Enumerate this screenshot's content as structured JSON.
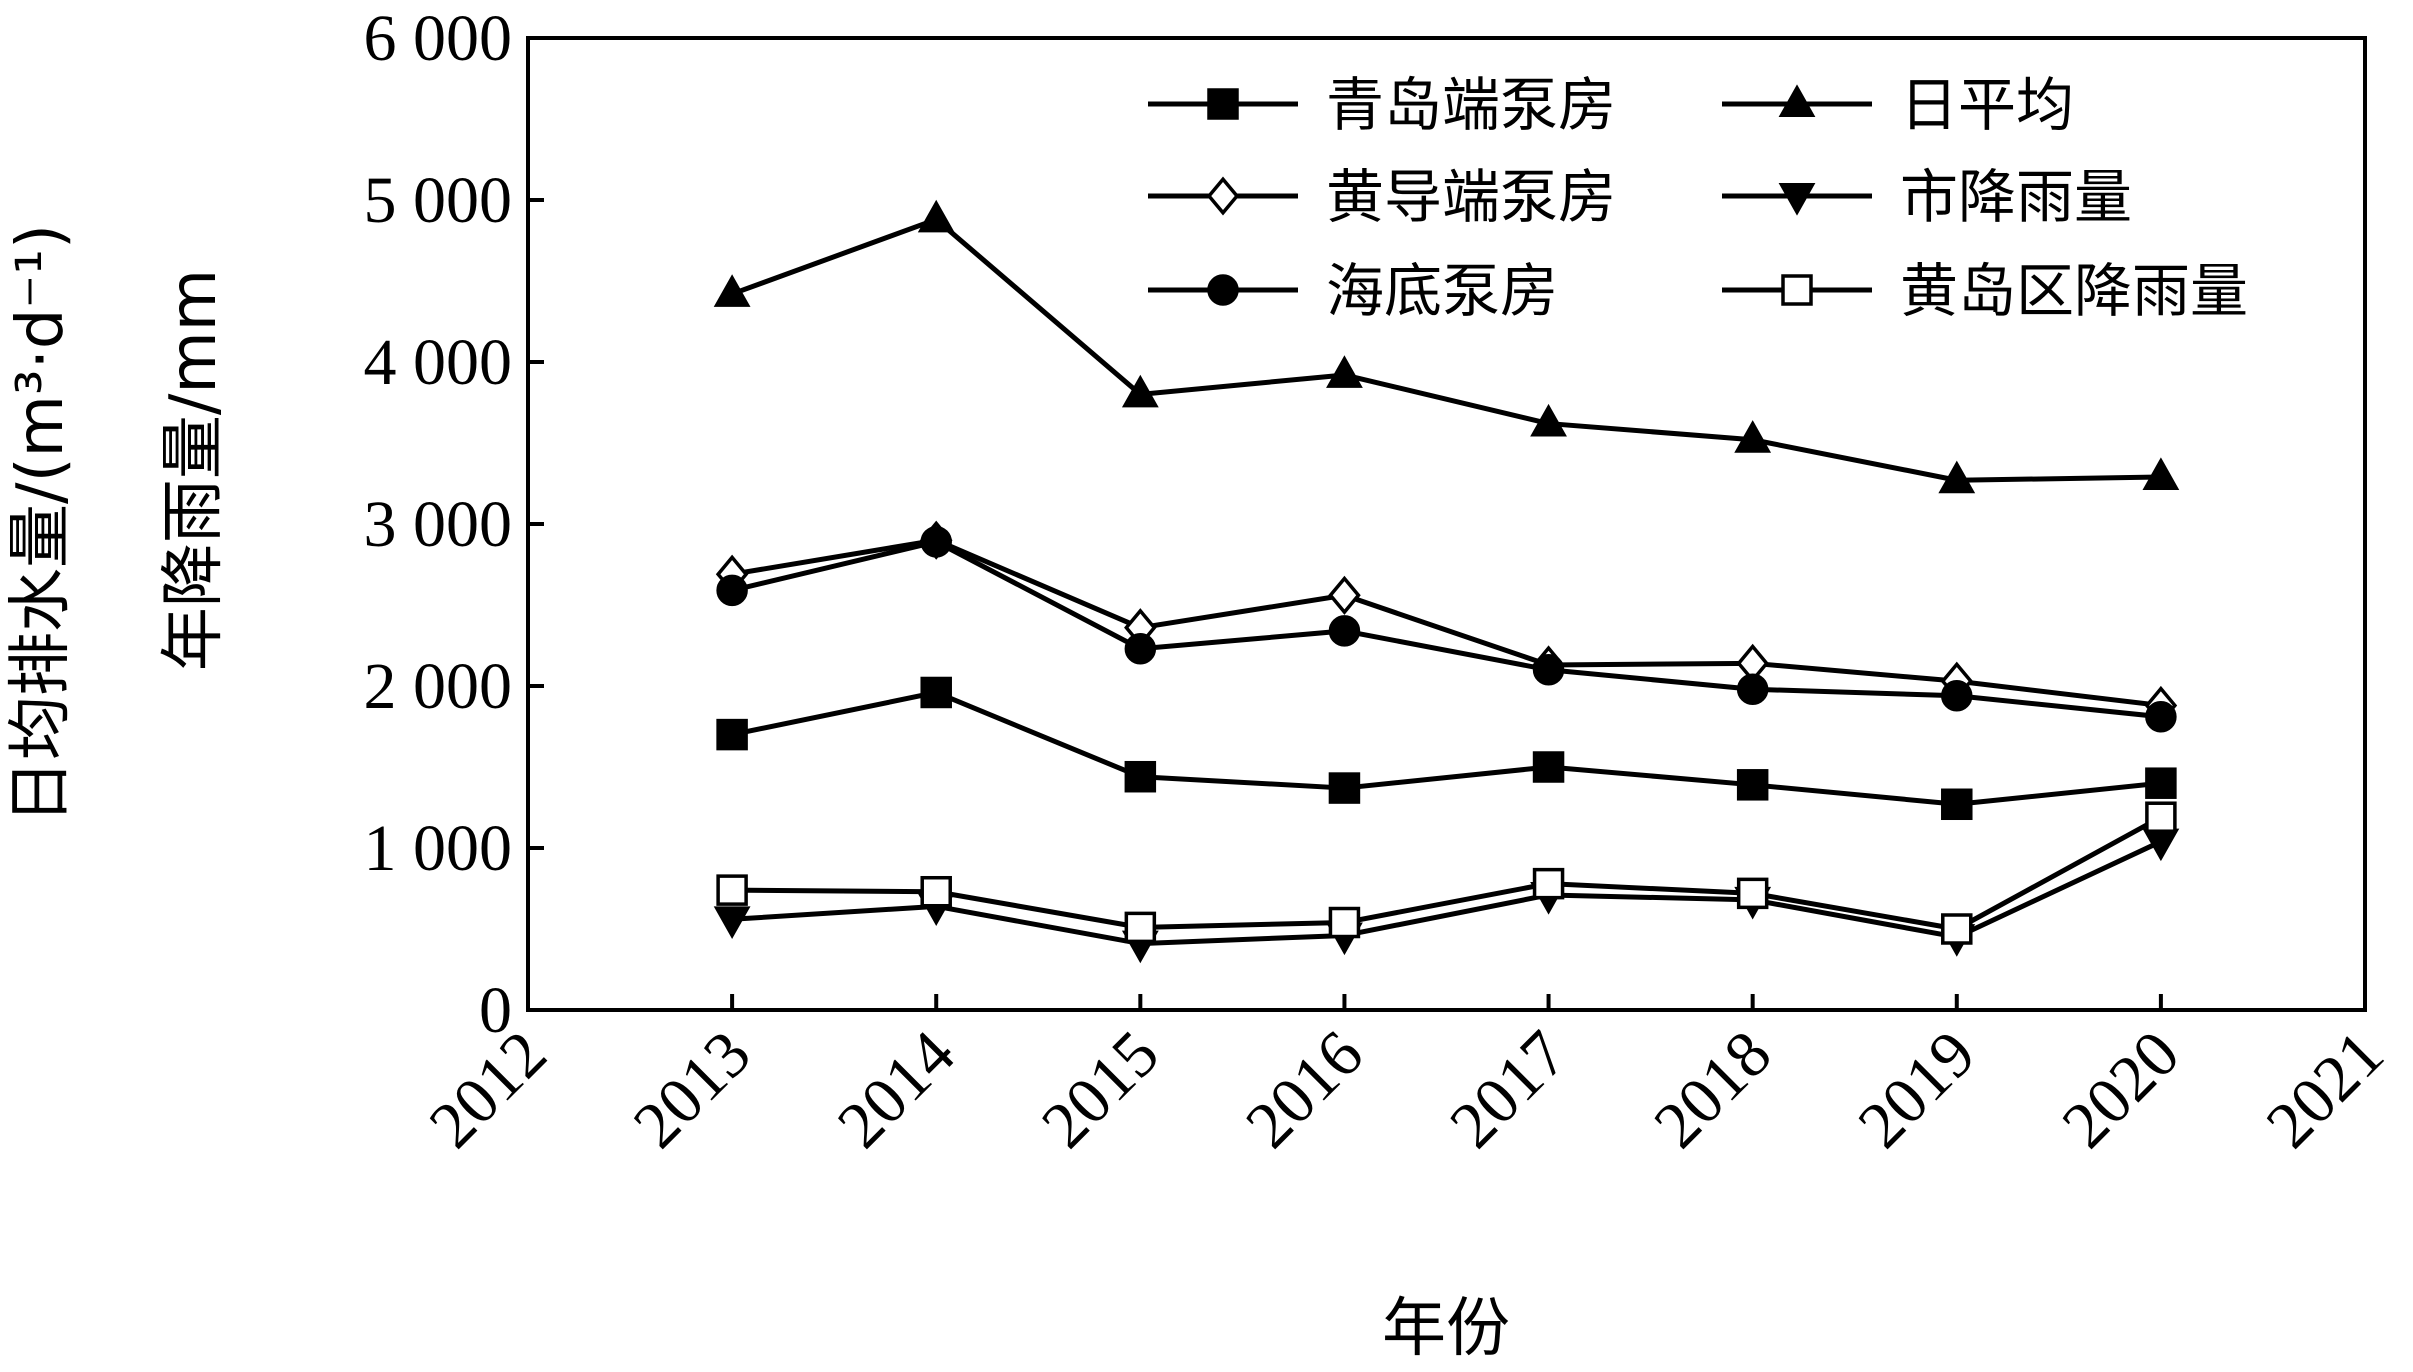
{
  "chart_data": {
    "type": "line",
    "x": [
      2013,
      2014,
      2015,
      2016,
      2017,
      2018,
      2019,
      2020
    ],
    "xticks": [
      "2012",
      "2013",
      "2014",
      "2015",
      "2016",
      "2017",
      "2018",
      "2019",
      "2020",
      "2021"
    ],
    "yticks": [
      "0",
      "1 000",
      "2 000",
      "3 000",
      "4 000",
      "5 000",
      "6 000"
    ],
    "xlim": [
      2012,
      2021
    ],
    "ylim": [
      0,
      6000
    ],
    "xlabel": "年份",
    "ylabel_line1": "日均排水量/(m³·d⁻¹)",
    "ylabel_line2": "年降雨量/mm",
    "grid": false,
    "legend_position": "top-right",
    "series": [
      {
        "name": "青岛端泵房",
        "marker": "square-filled",
        "values": [
          1700,
          1960,
          1440,
          1370,
          1500,
          1390,
          1270,
          1400
        ]
      },
      {
        "name": "日平均",
        "marker": "triangle-up-filled",
        "values": [
          4420,
          4880,
          3800,
          3920,
          3620,
          3520,
          3270,
          3290
        ]
      },
      {
        "name": "黄导端泵房",
        "marker": "diamond-open",
        "values": [
          2690,
          2900,
          2360,
          2560,
          2130,
          2140,
          2030,
          1880
        ]
      },
      {
        "name": "市降雨量",
        "marker": "triangle-down-filled",
        "values": [
          560,
          640,
          410,
          460,
          710,
          680,
          450,
          1040
        ]
      },
      {
        "name": "海底泵房",
        "marker": "circle-filled",
        "values": [
          2590,
          2890,
          2230,
          2340,
          2100,
          1980,
          1940,
          1810
        ]
      },
      {
        "name": "黄岛区降雨量",
        "marker": "square-open",
        "values": [
          740,
          730,
          510,
          540,
          780,
          720,
          500,
          1190
        ]
      }
    ]
  }
}
